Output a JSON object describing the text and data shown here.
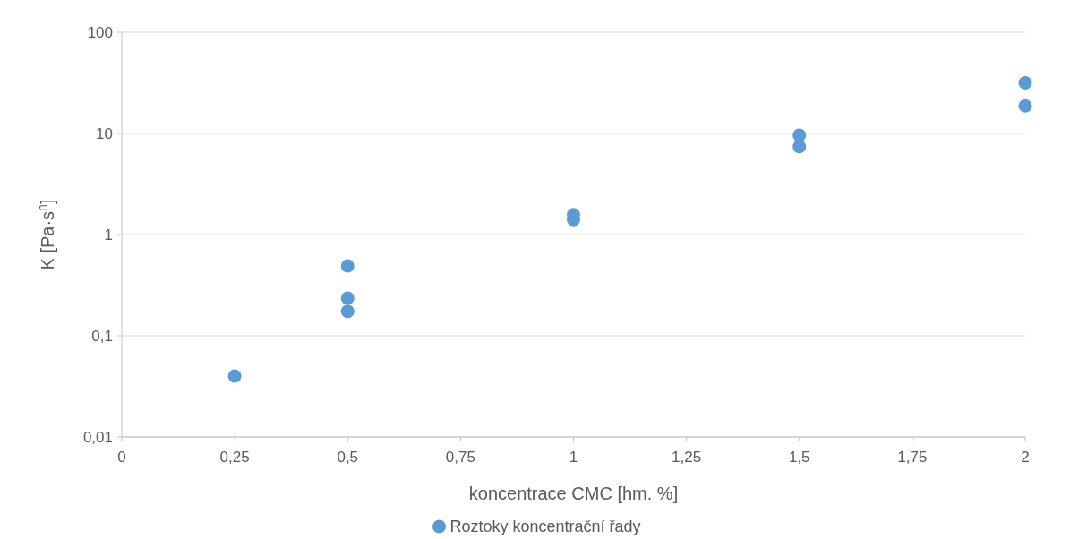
{
  "chart_data": {
    "type": "scatter",
    "xlabel": "koncentrace CMC [hm. %]",
    "ylabel": "K [Pa·s$^{n}$]",
    "log": "y",
    "grid": "y",
    "legend": "bottom",
    "marker": "circle",
    "xlim": [
      0,
      2
    ],
    "xticks": [
      {
        "value": 0,
        "label": "0"
      },
      {
        "value": 0.25,
        "label": "0,25"
      },
      {
        "value": 0.5,
        "label": "0,5"
      },
      {
        "value": 0.75,
        "label": "0,75"
      },
      {
        "value": 1,
        "label": "1"
      },
      {
        "value": 1.25,
        "label": "1,25"
      },
      {
        "value": 1.5,
        "label": "1,5"
      },
      {
        "value": 1.75,
        "label": "1,75"
      },
      {
        "value": 2,
        "label": "2"
      }
    ],
    "ylim": [
      0.01,
      100
    ],
    "yticks": [
      {
        "value": 0.01,
        "label": "0,01"
      },
      {
        "value": 0.1,
        "label": "0,1"
      },
      1,
      10,
      100
    ],
    "series": [
      {
        "name": "Roztoky koncentrační řady",
        "color": "#5b9bd5",
        "x": [
          0.25,
          0.5,
          0.5,
          0.5,
          1,
          1,
          1.5,
          1.5,
          2,
          2
        ],
        "values": [
          0.04,
          0.49,
          0.235,
          0.174,
          1.57,
          1.41,
          9.6,
          7.4,
          31.6,
          18.7
        ]
      }
    ]
  }
}
